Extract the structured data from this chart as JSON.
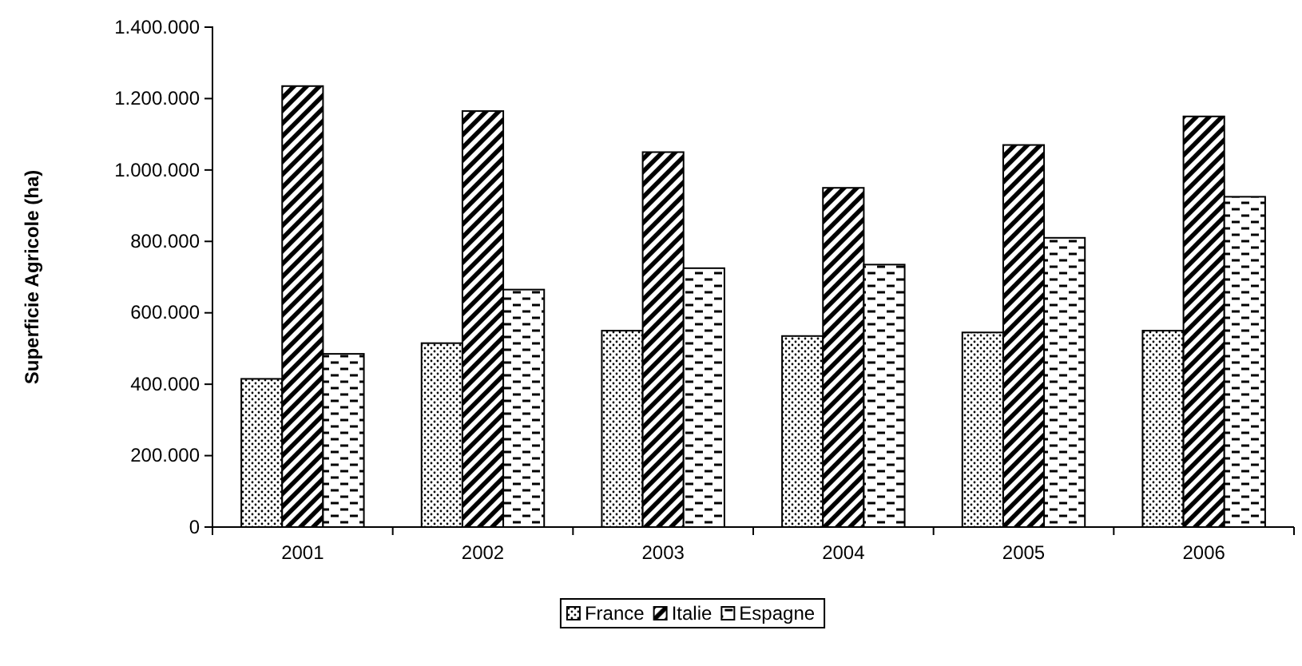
{
  "chart_data": {
    "type": "bar",
    "ylabel": "Superficie Agricole (ha)",
    "categories": [
      "2001",
      "2002",
      "2003",
      "2004",
      "2005",
      "2006"
    ],
    "series": [
      {
        "name": "France",
        "color": "#000000",
        "values": [
          415000,
          515000,
          550000,
          535000,
          545000,
          550000
        ]
      },
      {
        "name": "Italie",
        "color": "#000000",
        "values": [
          1235000,
          1165000,
          1050000,
          950000,
          1070000,
          1150000
        ]
      },
      {
        "name": "Espagne",
        "color": "#000000",
        "values": [
          485000,
          665000,
          725000,
          735000,
          810000,
          925000
        ]
      }
    ],
    "ylim": [
      0,
      1400000
    ],
    "yticks": [
      0,
      {
        "value": 200000,
        "label": "200.000"
      },
      {
        "value": 400000,
        "label": "400.000"
      },
      {
        "value": 600000,
        "label": "600.000"
      },
      {
        "value": 800000,
        "label": "800.000"
      },
      {
        "value": 1000000,
        "label": "1.000.000"
      },
      {
        "value": 1200000,
        "label": "1.200.000"
      },
      {
        "value": 1400000,
        "label": "1.400.000"
      }
    ],
    "grid": false,
    "legend": "bottom"
  }
}
